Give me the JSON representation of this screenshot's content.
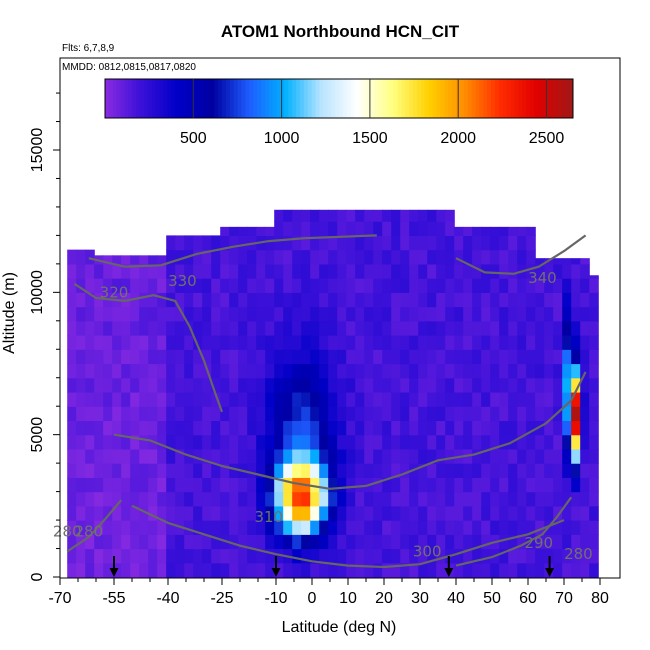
{
  "chart_data": {
    "type": "heatmap",
    "title": "ATOM1 Northbound HCN_CIT",
    "subtitle_flights": "Flts: 6,7,8,9",
    "subtitle_dates": "MMDD: 0812,0815,0817,0820",
    "xlabel": "Latitude (deg N)",
    "ylabel": "Altitude (m)",
    "xlim": [
      -70,
      80
    ],
    "ylim": [
      0,
      17500
    ],
    "xticks": [
      -70,
      -55,
      -40,
      -25,
      -10,
      0,
      10,
      20,
      30,
      40,
      50,
      60,
      70,
      80
    ],
    "xticklabels": [
      "-70",
      "-55",
      "-40",
      "-25",
      "-10",
      "0",
      "10",
      "20",
      "30",
      "40",
      "50",
      "60",
      "70",
      "80"
    ],
    "yticks": [
      0,
      5000,
      10000,
      15000
    ],
    "yticklabels": [
      "0",
      "5000",
      "10000",
      "15000"
    ],
    "colorbar": {
      "range": [
        0,
        2650
      ],
      "ticks": [
        500,
        1000,
        1500,
        2000,
        2500
      ],
      "ticklabels": [
        "500",
        "1000",
        "1500",
        "2000",
        "2500"
      ],
      "colors": [
        "#8a2be2",
        "#3a10d8",
        "#0000c8",
        "#0000a0",
        "#1e5cff",
        "#00b0ff",
        "#b8e4ff",
        "#ffffff",
        "#ffff80",
        "#ffd000",
        "#ff8c00",
        "#ff2a00",
        "#e00000",
        "#a01818"
      ]
    },
    "hcn_field": {
      "background_value": 180,
      "stratosphere_value": 120,
      "tropical_plume": {
        "center_lat": -3,
        "center_alt": 2800,
        "peak": 1900
      },
      "arctic_plume": {
        "center_lat": 73,
        "center_alt": 5700,
        "peak": 2400
      }
    },
    "contours": [
      {
        "label": "330",
        "lat": [
          -62,
          -52,
          -42,
          -32,
          -22,
          -12,
          -2,
          8,
          18
        ],
        "alt": [
          11200,
          10900,
          10950,
          11350,
          11600,
          11800,
          11900,
          11950,
          12000
        ]
      },
      {
        "label": "320",
        "lat": [
          -66,
          -60,
          -52,
          -44,
          -38,
          -34,
          -30,
          -27,
          -25
        ],
        "alt": [
          10300,
          9800,
          9700,
          9900,
          9700,
          8800,
          7600,
          6500,
          5800
        ]
      },
      {
        "label": "340",
        "lat": [
          40,
          48,
          56,
          63,
          70,
          76
        ],
        "alt": [
          11200,
          10700,
          10650,
          10900,
          11450,
          12000
        ]
      },
      {
        "label": "310",
        "lat": [
          -55,
          -45,
          -35,
          -25,
          -15,
          -5,
          5,
          15,
          25,
          35,
          45,
          55,
          65,
          72,
          76
        ],
        "alt": [
          5000,
          4800,
          4300,
          3900,
          3600,
          3300,
          3100,
          3200,
          3600,
          4100,
          4300,
          4700,
          5400,
          6200,
          7200
        ]
      },
      {
        "label": "300",
        "lat": [
          -50,
          -40,
          -30,
          -20,
          -10,
          0,
          10,
          20,
          30,
          40,
          50,
          60,
          70
        ],
        "alt": [
          2500,
          1900,
          1500,
          1100,
          800,
          550,
          400,
          350,
          450,
          800,
          1200,
          1500,
          2000
        ]
      },
      {
        "label": "290",
        "lat": [
          40,
          50,
          58,
          64,
          68,
          72
        ],
        "alt": [
          400,
          700,
          1100,
          1500,
          2100,
          2800
        ]
      },
      {
        "label": "280",
        "lat": [
          -68,
          -62,
          -57,
          -53
        ],
        "alt": [
          900,
          1400,
          2100,
          2700
        ]
      }
    ],
    "contour_label_positions": [
      {
        "label": "330",
        "lat": -36,
        "alt": 10400
      },
      {
        "label": "320",
        "lat": -55,
        "alt": 10000
      },
      {
        "label": "340",
        "lat": 64,
        "alt": 10500
      },
      {
        "label": "310",
        "lat": -12,
        "alt": 2100
      },
      {
        "label": "300",
        "lat": 32,
        "alt": 900
      },
      {
        "label": "290",
        "lat": 63,
        "alt": 1200
      },
      {
        "label": "280",
        "lat": 74,
        "alt": 800
      },
      {
        "label": "280",
        "lat": -62,
        "alt": 1600
      },
      {
        "label": "280",
        "lat": -68,
        "alt": 1600
      }
    ],
    "vertical_profile_markers_lat": [
      -55,
      -10,
      38,
      66
    ]
  },
  "colors": {
    "contour": "#666666",
    "axis": "#000000",
    "background": "#ffffff"
  }
}
